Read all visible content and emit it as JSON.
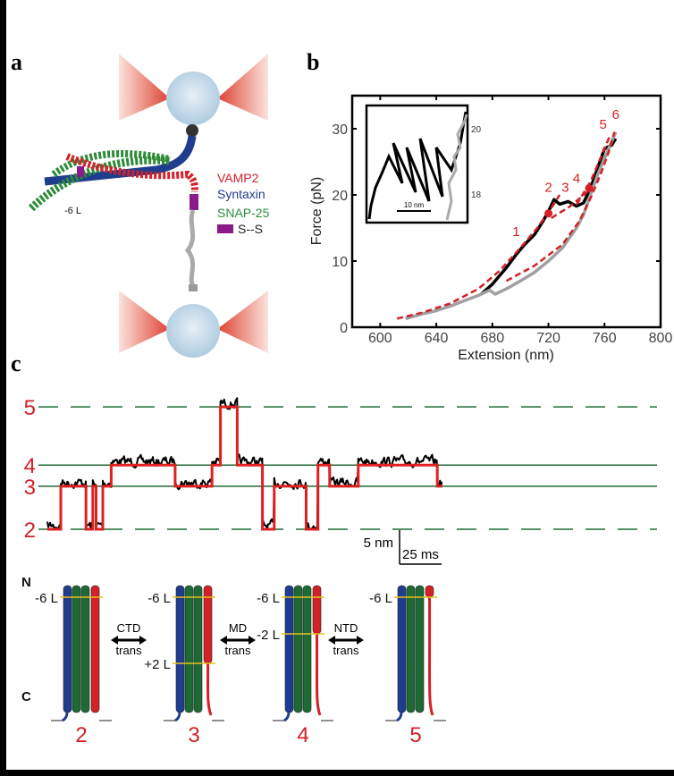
{
  "panels": {
    "a": "a",
    "b": "b",
    "c": "c"
  },
  "panel_a": {
    "legend": [
      {
        "label": "VAMP2",
        "color": "#d42027"
      },
      {
        "label": "Syntaxin",
        "color": "#1f3d8f"
      },
      {
        "label": "SNAP-25",
        "color": "#2e8b3a"
      },
      {
        "label": "S--S",
        "color": "#8b1a8b"
      }
    ],
    "layer_label": "-6 L"
  },
  "chart_data": [
    {
      "type": "line",
      "panel": "b",
      "xlabel": "Extension (nm)",
      "ylabel": "Force (pN)",
      "xlim": [
        580,
        800
      ],
      "ylim": [
        0,
        35
      ],
      "xticks": [
        600,
        640,
        680,
        720,
        760,
        800
      ],
      "yticks": [
        0,
        10,
        20,
        30
      ],
      "grid": false,
      "series": [
        {
          "color": "#000000",
          "x": [
            672,
            680,
            690,
            697,
            703,
            710,
            716,
            720,
            724,
            728,
            734,
            740,
            745,
            750,
            755,
            760,
            765,
            768
          ],
          "y": [
            5,
            6.5,
            9,
            11,
            12.5,
            14,
            16,
            17.5,
            19.3,
            18.6,
            19,
            18.3,
            18.8,
            21,
            24,
            27,
            27.5,
            28.5
          ]
        },
        {
          "color": "#a0a0a0",
          "x": [
            618,
            630,
            640,
            650,
            660,
            670,
            678,
            682,
            690,
            700,
            710,
            720,
            730,
            740,
            745,
            750,
            755,
            760,
            768
          ],
          "y": [
            1.3,
            2,
            2.5,
            3.2,
            4,
            4.8,
            5.6,
            5,
            5.8,
            7,
            8.3,
            10,
            12,
            15,
            17,
            20,
            23,
            25.5,
            29.5
          ]
        },
        {
          "color": "#d42027",
          "dashed": true,
          "x": [
            612,
            630,
            650,
            670,
            685,
            700,
            712,
            722,
            728
          ],
          "y": [
            1.3,
            2.2,
            3.6,
            5.8,
            8.5,
            12,
            15,
            18,
            20
          ]
        },
        {
          "color": "#d42027",
          "dashed": true,
          "x": [
            722,
            735,
            748
          ],
          "y": [
            16.5,
            18.2,
            20.5
          ]
        },
        {
          "color": "#d42027",
          "dashed": true,
          "x": [
            690,
            710,
            730,
            742,
            750,
            757,
            763,
            767
          ],
          "y": [
            7,
            9.3,
            12.5,
            16,
            19.5,
            23,
            26.5,
            29.5
          ]
        },
        {
          "color": "#d42027",
          "dashed": true,
          "x": [
            740,
            750,
            758,
            764
          ],
          "y": [
            18.5,
            22,
            26,
            29
          ]
        }
      ],
      "markers": [
        {
          "x": 720,
          "y": 17.2
        },
        {
          "x": 749,
          "y": 21
        }
      ],
      "annotations": [
        {
          "text": "1",
          "x": 697,
          "y": 13.8
        },
        {
          "text": "2",
          "x": 720,
          "y": 20.5
        },
        {
          "text": "3",
          "x": 732,
          "y": 20.5
        },
        {
          "text": "4",
          "x": 740,
          "y": 21.8
        },
        {
          "text": "5",
          "x": 759,
          "y": 30
        },
        {
          "text": "6",
          "x": 768,
          "y": 31.5
        }
      ],
      "inset": {
        "right_ticks": [
          "20",
          "18"
        ],
        "scalebar": "10 nm"
      }
    },
    {
      "type": "line",
      "panel": "c",
      "state_labels": [
        "2",
        "3",
        "4",
        "5"
      ],
      "state_levels_nm": {
        "2": 0,
        "3": 6.5,
        "4": 9.7,
        "5": 18.5
      },
      "states": [
        {
          "state": 2,
          "t0": 0,
          "t1": 8
        },
        {
          "state": 3,
          "t0": 8,
          "t1": 23
        },
        {
          "state": 2,
          "t0": 23,
          "t1": 27
        },
        {
          "state": 3,
          "t0": 27,
          "t1": 29
        },
        {
          "state": 2,
          "t0": 29,
          "t1": 33
        },
        {
          "state": 3,
          "t0": 33,
          "t1": 38
        },
        {
          "state": 4,
          "t0": 38,
          "t1": 76
        },
        {
          "state": 3,
          "t0": 76,
          "t1": 98
        },
        {
          "state": 4,
          "t0": 98,
          "t1": 103
        },
        {
          "state": 5,
          "t0": 103,
          "t1": 113
        },
        {
          "state": 4,
          "t0": 113,
          "t1": 128
        },
        {
          "state": 2,
          "t0": 128,
          "t1": 135
        },
        {
          "state": 3,
          "t0": 135,
          "t1": 154
        },
        {
          "state": 2,
          "t0": 154,
          "t1": 161
        },
        {
          "state": 4,
          "t0": 161,
          "t1": 168
        },
        {
          "state": 3,
          "t0": 168,
          "t1": 185
        },
        {
          "state": 4,
          "t0": 185,
          "t1": 232
        },
        {
          "state": 3,
          "t0": 232,
          "t1": 235
        }
      ],
      "scalebar_y": "5 nm",
      "scalebar_x": "25 ms"
    }
  ],
  "panel_c_schematic": {
    "ends": {
      "n": "N",
      "c": "C"
    },
    "states": [
      {
        "label": "2",
        "layers": [
          "-6 L"
        ]
      },
      {
        "label": "3",
        "layers": [
          "-6 L",
          "+2 L"
        ]
      },
      {
        "label": "4",
        "layers": [
          "-6 L",
          "-2 L"
        ]
      },
      {
        "label": "5",
        "layers": [
          "-6 L"
        ]
      }
    ],
    "transitions": [
      {
        "top": "CTD",
        "bottom": "trans"
      },
      {
        "top": "MD",
        "bottom": "trans"
      },
      {
        "top": "NTD",
        "bottom": "trans"
      }
    ],
    "colors": {
      "syntaxin": "#1f3d8f",
      "snap25": "#1e6a35",
      "vamp2": "#d42027",
      "layer": "#e8c020"
    }
  }
}
